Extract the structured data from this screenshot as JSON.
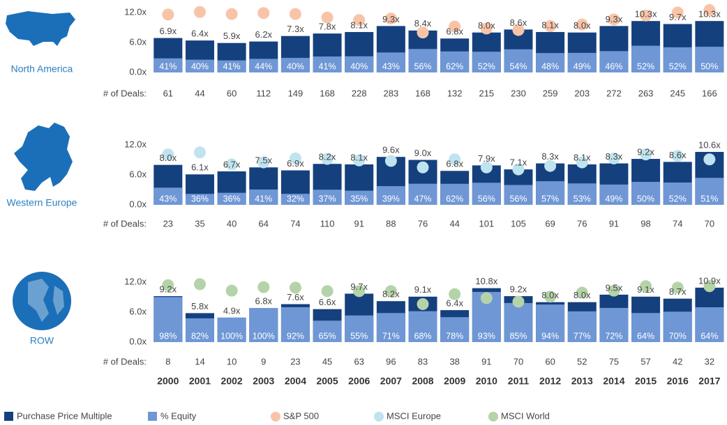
{
  "categories": [
    "2000",
    "2001",
    "2002",
    "2003",
    "2004",
    "2005",
    "2006",
    "2007",
    "2008",
    "2009",
    "2010",
    "2011",
    "2012",
    "2013",
    "2014",
    "2015",
    "2016",
    "2017"
  ],
  "legend": [
    {
      "name": "Purchase Price Multiple",
      "color": "#15407e"
    },
    {
      "name": "% Equity",
      "color": "#6f97d6"
    },
    {
      "name": "S&P 500",
      "color": "#f8c4a8"
    },
    {
      "name": "MSCI Europe",
      "color": "#bfe3ef"
    },
    {
      "name": "MSCI World",
      "color": "#b5d3a8"
    }
  ],
  "chart_data": [
    {
      "type": "bar",
      "region": "North America",
      "ylim": [
        0,
        12
      ],
      "yticks": [
        {
          "value": 0,
          "label": "0.0x"
        },
        {
          "value": 6,
          "label": "6.0x"
        },
        {
          "value": 12,
          "label": "12.0x"
        }
      ],
      "multiple": {
        "color": "#15407e",
        "values": [
          6.9,
          6.4,
          5.9,
          6.2,
          7.3,
          7.8,
          8.1,
          9.3,
          8.4,
          6.8,
          8.0,
          8.6,
          8.1,
          8.0,
          9.3,
          10.3,
          9.7,
          10.3
        ],
        "value_labels": [
          "6.9x",
          "6.4x",
          "5.9x",
          "6.2x",
          "7.3x",
          "7.8x",
          "8.1x",
          "9.3x",
          "8.4x",
          "6.8x",
          "8.0x",
          "8.6x",
          "8.1x",
          "8.0x",
          "9.3x",
          "10.3x",
          "9.7x",
          "10.3x"
        ]
      },
      "equity": {
        "color": "#6f97d6",
        "values": [
          41,
          40,
          41,
          44,
          40,
          41,
          40,
          43,
          56,
          62,
          52,
          54,
          48,
          49,
          46,
          52,
          52,
          50
        ],
        "value_labels": [
          "41%",
          "40%",
          "41%",
          "44%",
          "40%",
          "41%",
          "40%",
          "43%",
          "56%",
          "62%",
          "52%",
          "54%",
          "48%",
          "49%",
          "46%",
          "52%",
          "52%",
          "50%"
        ]
      },
      "index": {
        "color": "#f8c4a8",
        "values": [
          11.6,
          12.1,
          11.7,
          11.9,
          11.7,
          11.0,
          10.5,
          10.8,
          8.0,
          9.2,
          8.8,
          8.5,
          9.3,
          9.6,
          10.6,
          11.4,
          12.0,
          12.5
        ]
      },
      "deals_label": "# of Deals:",
      "deals": [
        "61",
        "44",
        "60",
        "112",
        "149",
        "168",
        "228",
        "283",
        "168",
        "132",
        "215",
        "230",
        "259",
        "203",
        "272",
        "263",
        "245",
        "166"
      ]
    },
    {
      "type": "bar",
      "region": "Western Europe",
      "ylim": [
        0,
        12
      ],
      "yticks": [
        {
          "value": 0,
          "label": "0.0x"
        },
        {
          "value": 6,
          "label": "6.0x"
        },
        {
          "value": 12,
          "label": "12.0x"
        }
      ],
      "multiple": {
        "color": "#15407e",
        "values": [
          8.0,
          6.1,
          6.7,
          7.5,
          6.9,
          8.2,
          8.1,
          9.6,
          9.0,
          6.8,
          7.9,
          7.1,
          8.3,
          8.1,
          8.3,
          9.2,
          8.6,
          10.6
        ],
        "value_labels": [
          "8.0x",
          "6.1x",
          "6.7x",
          "7.5x",
          "6.9x",
          "8.2x",
          "8.1x",
          "9.6x",
          "9.0x",
          "6.8x",
          "7.9x",
          "7.1x",
          "8.3x",
          "8.1x",
          "8.3x",
          "9.2x",
          "8.6x",
          "10.6x"
        ]
      },
      "equity": {
        "color": "#6f97d6",
        "values": [
          43,
          36,
          36,
          41,
          32,
          37,
          35,
          39,
          47,
          62,
          56,
          56,
          57,
          53,
          49,
          50,
          52,
          51
        ],
        "value_labels": [
          "43%",
          "36%",
          "36%",
          "41%",
          "32%",
          "37%",
          "35%",
          "39%",
          "47%",
          "62%",
          "56%",
          "56%",
          "57%",
          "53%",
          "49%",
          "50%",
          "52%",
          "51%"
        ]
      },
      "index": {
        "color": "#bfe3ef",
        "values": [
          10.1,
          10.5,
          8.1,
          8.5,
          9.3,
          9.2,
          8.9,
          8.8,
          7.5,
          9.1,
          7.5,
          7.1,
          7.8,
          8.5,
          9.3,
          10.1,
          9.8,
          9.1
        ]
      },
      "deals_label": "# of Deals:",
      "deals": [
        "23",
        "35",
        "40",
        "64",
        "74",
        "110",
        "91",
        "88",
        "76",
        "44",
        "101",
        "105",
        "69",
        "76",
        "91",
        "98",
        "74",
        "70"
      ]
    },
    {
      "type": "bar",
      "region": "ROW",
      "ylim": [
        0,
        12
      ],
      "yticks": [
        {
          "value": 0,
          "label": "0.0x"
        },
        {
          "value": 6,
          "label": "6.0x"
        },
        {
          "value": 12,
          "label": "12.0x"
        }
      ],
      "multiple": {
        "color": "#15407e",
        "values": [
          9.2,
          5.8,
          4.9,
          6.8,
          7.6,
          6.6,
          9.7,
          8.2,
          9.1,
          6.4,
          10.8,
          9.2,
          8.0,
          8.0,
          9.5,
          9.1,
          8.7,
          10.9
        ],
        "value_labels": [
          "9.2x",
          "5.8x",
          "4.9x",
          "6.8x",
          "7.6x",
          "6.6x",
          "9.7x",
          "8.2x",
          "9.1x",
          "6.4x",
          "10.8x",
          "9.2x",
          "8.0x",
          "8.0x",
          "9.5x",
          "9.1x",
          "8.7x",
          "10.9x"
        ]
      },
      "equity": {
        "color": "#6f97d6",
        "values": [
          98,
          82,
          100,
          100,
          92,
          65,
          55,
          71,
          68,
          78,
          93,
          85,
          94,
          77,
          72,
          64,
          70,
          64
        ],
        "value_labels": [
          "98%",
          "82%",
          "100%",
          "100%",
          "92%",
          "65%",
          "55%",
          "71%",
          "68%",
          "78%",
          "93%",
          "85%",
          "94%",
          "77%",
          "72%",
          "64%",
          "70%",
          "64%"
        ]
      },
      "index": {
        "color": "#b5d3a8",
        "values": [
          11.4,
          11.6,
          10.3,
          11.0,
          10.9,
          10.2,
          10.2,
          10.2,
          7.6,
          9.6,
          8.8,
          8.1,
          9.1,
          9.9,
          10.3,
          11.2,
          10.9,
          11.2
        ]
      },
      "deals_label": "# of Deals:",
      "deals": [
        "8",
        "14",
        "10",
        "9",
        "23",
        "45",
        "63",
        "96",
        "83",
        "38",
        "91",
        "70",
        "60",
        "52",
        "75",
        "57",
        "42",
        "32"
      ]
    }
  ]
}
